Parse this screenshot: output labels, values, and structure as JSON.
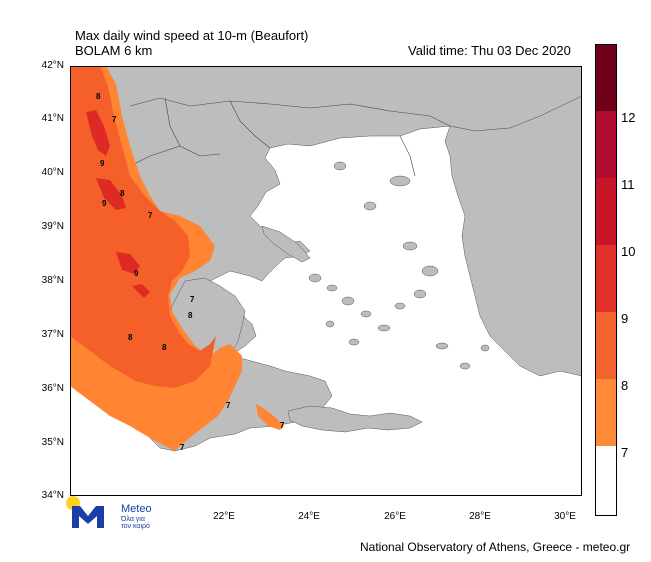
{
  "header": {
    "title_line1": "Max daily wind speed at 10-m (Beaufort)",
    "title_line2": "BOLAM 6 km",
    "valid_time": "Valid time: Thu 03 Dec 2020"
  },
  "map": {
    "lat_labels": [
      "42°N",
      "41°N",
      "40°N",
      "39°N",
      "38°N",
      "37°N",
      "36°N",
      "35°N",
      "34°N"
    ],
    "lon_labels": [
      "22°E",
      "24°E",
      "26°E",
      "28°E",
      "30°E"
    ],
    "contour_labels": [
      "8",
      "7",
      "9",
      "8",
      "9",
      "7",
      "9",
      "7",
      "8",
      "8",
      "8",
      "7",
      "7",
      "7"
    ],
    "colors": {
      "land": "#bdbdbd",
      "sea_calm": "#ffffff",
      "b7": "#ff8533",
      "b8": "#f5602a",
      "b9": "#de2a25"
    }
  },
  "colorbar": {
    "labels": [
      "12",
      "11",
      "10",
      "9",
      "8",
      "7"
    ],
    "colors": [
      "#ffffff",
      "#fe8a3a",
      "#f2632e",
      "#e03128",
      "#c81527",
      "#b00d2e",
      "#8e0624",
      "#6e0018"
    ]
  },
  "logo": {
    "name": "Meteo",
    "tagline_1": "Όλα για",
    "tagline_2": "τον καιρό"
  },
  "footer": {
    "credit": "National Observatory of Athens, Greece - meteo.gr"
  }
}
